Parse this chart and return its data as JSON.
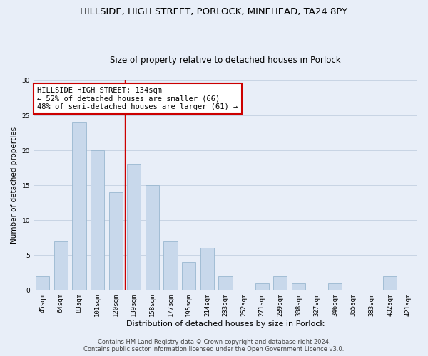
{
  "title1": "HILLSIDE, HIGH STREET, PORLOCK, MINEHEAD, TA24 8PY",
  "title2": "Size of property relative to detached houses in Porlock",
  "xlabel": "Distribution of detached houses by size in Porlock",
  "ylabel": "Number of detached properties",
  "categories": [
    "45sqm",
    "64sqm",
    "83sqm",
    "101sqm",
    "120sqm",
    "139sqm",
    "158sqm",
    "177sqm",
    "195sqm",
    "214sqm",
    "233sqm",
    "252sqm",
    "271sqm",
    "289sqm",
    "308sqm",
    "327sqm",
    "346sqm",
    "365sqm",
    "383sqm",
    "402sqm",
    "421sqm"
  ],
  "values": [
    2,
    7,
    24,
    20,
    14,
    18,
    15,
    7,
    4,
    6,
    2,
    0,
    1,
    2,
    1,
    0,
    1,
    0,
    0,
    2,
    0
  ],
  "bar_color": "#c8d8eb",
  "bar_edge_color": "#9ab8d0",
  "annotation_box_text": "HILLSIDE HIGH STREET: 134sqm\n← 52% of detached houses are smaller (66)\n48% of semi-detached houses are larger (61) →",
  "annotation_box_color": "#ffffff",
  "annotation_box_edge_color": "#cc0000",
  "vline_color": "#cc0000",
  "ylim": [
    0,
    30
  ],
  "yticks": [
    0,
    5,
    10,
    15,
    20,
    25,
    30
  ],
  "grid_color": "#c8d4e4",
  "footer1": "Contains HM Land Registry data © Crown copyright and database right 2024.",
  "footer2": "Contains public sector information licensed under the Open Government Licence v3.0.",
  "background_color": "#e8eef8",
  "title1_fontsize": 9.5,
  "title2_fontsize": 8.5,
  "xlabel_fontsize": 8,
  "ylabel_fontsize": 7.5,
  "tick_fontsize": 6.5,
  "annotation_fontsize": 7.5,
  "footer_fontsize": 6
}
